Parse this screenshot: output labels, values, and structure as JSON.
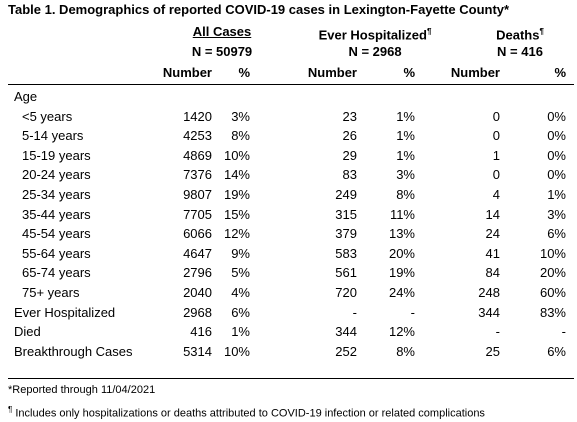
{
  "header": {
    "title": "Table 1. Demographics of reported COVID-19 cases in Lexington-Fayette County*"
  },
  "groups": [
    {
      "label": "All Cases",
      "mark": null,
      "n": "N = 50979"
    },
    {
      "label": "Ever Hospitalized",
      "mark": "¶",
      "n": "N = 2968"
    },
    {
      "label": "Deaths",
      "mark": "¶",
      "n": "N = 416"
    }
  ],
  "subheaders": [
    "Number",
    "%"
  ],
  "age_group": {
    "label": "Age",
    "rows": [
      [
        "<5 years",
        "1420",
        "3%",
        "23",
        "1%",
        "0",
        "0%"
      ],
      [
        "5-14 years",
        "4253",
        "8%",
        "26",
        "1%",
        "0",
        "0%"
      ],
      [
        "15-19 years",
        "4869",
        "10%",
        "29",
        "1%",
        "1",
        "0%"
      ],
      [
        "20-24 years",
        "7376",
        "14%",
        "83",
        "3%",
        "0",
        "0%"
      ],
      [
        "25-34 years",
        "9807",
        "19%",
        "249",
        "8%",
        "4",
        "1%"
      ],
      [
        "35-44 years",
        "7705",
        "15%",
        "315",
        "11%",
        "14",
        "3%"
      ],
      [
        "45-54 years",
        "6066",
        "12%",
        "379",
        "13%",
        "24",
        "6%"
      ],
      [
        "55-64 years",
        "4647",
        "9%",
        "583",
        "20%",
        "41",
        "10%"
      ],
      [
        "65-74 years",
        "2796",
        "5%",
        "561",
        "19%",
        "84",
        "20%"
      ],
      [
        "75+ years",
        "2040",
        "4%",
        "720",
        "24%",
        "248",
        "60%"
      ]
    ]
  },
  "other_rows": [
    [
      "Ever Hospitalized",
      "2968",
      "6%",
      "-",
      "-",
      "344",
      "83%"
    ],
    [
      "Died",
      "416",
      "1%",
      "344",
      "12%",
      "-",
      "-"
    ],
    [
      "Breakthrough Cases",
      "5314",
      "10%",
      "252",
      "8%",
      "25",
      "6%"
    ]
  ],
  "footnotes": [
    {
      "mark": null,
      "text": "*Reported through 11/04/2021"
    },
    {
      "mark": "¶",
      "text": " Includes only hospitalizations or deaths attributed to COVID-19 infection or related complications"
    }
  ]
}
